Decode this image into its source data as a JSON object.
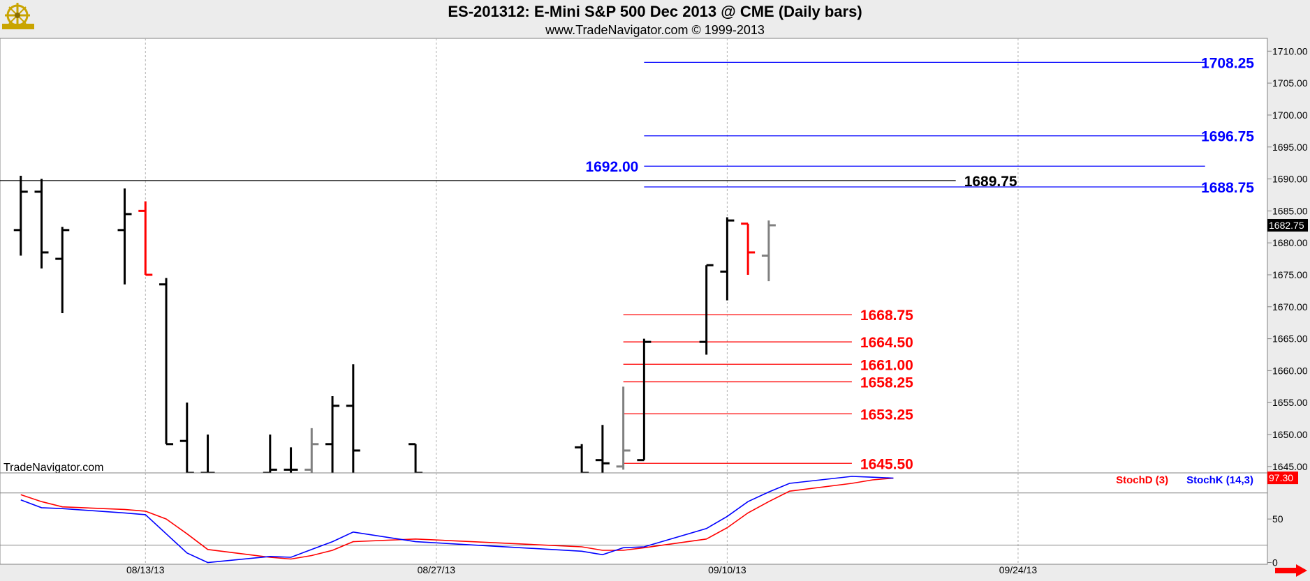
{
  "header": {
    "title": "ES-201312:  E-Mini S&P 500 Dec 2013 @ CME  (Daily bars)",
    "subtitle": "www.TradeNavigator.com © 1999-2013"
  },
  "watermark": "TradeNavigator.com",
  "logo_icon": "ship-wheel-logo-icon",
  "colors": {
    "background": "#ffffff",
    "frame": "#ececec",
    "up_bar": "#000000",
    "down_bar": "#ff0000",
    "neutral_bar": "#808080",
    "resistance": "#0000ff",
    "support": "#ff0000",
    "stoch_k": "#0000ff",
    "stoch_d": "#ff0000"
  },
  "chart_data": [
    {
      "type": "ohlc",
      "name": "price",
      "x_axis": {
        "type": "date",
        "ticks": [
          {
            "date": "2013-08-13",
            "label": "08/13/13"
          },
          {
            "date": "2013-08-27",
            "label": "08/27/13"
          },
          {
            "date": "2013-09-10",
            "label": "09/10/13"
          },
          {
            "date": "2013-09-24",
            "label": "09/24/13"
          }
        ],
        "range": [
          "2013-08-06",
          "2013-10-06"
        ]
      },
      "y_axis": {
        "range": [
          1644,
          1712
        ],
        "ticks": [
          "1710.00",
          "1705.00",
          "1700.00",
          "1695.00",
          "1690.00",
          "1685.00",
          "1680.00",
          "1675.00",
          "1670.00",
          "1665.00",
          "1660.00",
          "1655.00",
          "1650.00",
          "1645.00"
        ],
        "side": "right"
      },
      "grid": "vertical-dashed",
      "last_price": {
        "value": 1682.75,
        "label": "1682.75"
      },
      "bars": [
        {
          "date": "2013-08-07",
          "open": 1682.0,
          "high": 1690.5,
          "low": 1678.0,
          "close": 1688.0,
          "color": "up"
        },
        {
          "date": "2013-08-08",
          "open": 1688.0,
          "high": 1690.0,
          "low": 1676.0,
          "close": 1678.5,
          "color": "up"
        },
        {
          "date": "2013-08-09",
          "open": 1677.5,
          "high": 1682.5,
          "low": 1669.0,
          "close": 1682.0,
          "color": "up"
        },
        {
          "date": "2013-08-12",
          "open": 1682.0,
          "high": 1688.5,
          "low": 1673.5,
          "close": 1684.5,
          "color": "up"
        },
        {
          "date": "2013-08-13",
          "open": 1685.0,
          "high": 1686.5,
          "low": 1675.0,
          "close": 1675.0,
          "color": "down"
        },
        {
          "date": "2013-08-14",
          "open": 1673.5,
          "high": 1674.5,
          "low": 1648.5,
          "close": 1648.5,
          "color": "up"
        },
        {
          "date": "2013-08-15",
          "open": 1649.0,
          "high": 1655.0,
          "low": 1644.0,
          "close": 1644.0,
          "color": "up"
        },
        {
          "date": "2013-08-16",
          "open": 1644.0,
          "high": 1650.0,
          "low": 1644.0,
          "close": 1644.0,
          "color": "up"
        },
        {
          "date": "2013-08-19",
          "open": 1644.0,
          "high": 1650.0,
          "low": 1644.0,
          "close": 1644.5,
          "color": "up"
        },
        {
          "date": "2013-08-20",
          "open": 1644.5,
          "high": 1648.0,
          "low": 1644.0,
          "close": 1644.5,
          "color": "up"
        },
        {
          "date": "2013-08-21",
          "open": 1644.5,
          "high": 1651.0,
          "low": 1644.0,
          "close": 1648.5,
          "color": "neutral"
        },
        {
          "date": "2013-08-22",
          "open": 1648.5,
          "high": 1656.0,
          "low": 1644.0,
          "close": 1654.5,
          "color": "up"
        },
        {
          "date": "2013-08-23",
          "open": 1654.5,
          "high": 1661.0,
          "low": 1644.0,
          "close": 1647.5,
          "color": "up"
        },
        {
          "date": "2013-08-26",
          "open": 1648.5,
          "high": 1648.5,
          "low": 1644.0,
          "close": 1644.0,
          "color": "up"
        },
        {
          "date": "2013-09-03",
          "open": 1648.0,
          "high": 1648.5,
          "low": 1644.0,
          "close": 1644.0,
          "color": "up"
        },
        {
          "date": "2013-09-04",
          "open": 1646.0,
          "high": 1651.5,
          "low": 1644.0,
          "close": 1645.5,
          "color": "up"
        },
        {
          "date": "2013-09-05",
          "open": 1645.0,
          "high": 1657.5,
          "low": 1644.5,
          "close": 1647.5,
          "color": "neutral"
        },
        {
          "date": "2013-09-06",
          "open": 1646.0,
          "high": 1665.0,
          "low": 1646.0,
          "close": 1664.5,
          "color": "up"
        },
        {
          "date": "2013-09-09",
          "open": 1664.5,
          "high": 1676.5,
          "low": 1662.5,
          "close": 1676.5,
          "color": "up"
        },
        {
          "date": "2013-09-10",
          "open": 1675.5,
          "high": 1684.0,
          "low": 1671.0,
          "close": 1683.5,
          "color": "up"
        },
        {
          "date": "2013-09-11",
          "open": 1683.0,
          "high": 1683.0,
          "low": 1675.0,
          "close": 1678.5,
          "color": "down"
        },
        {
          "date": "2013-09-12",
          "open": 1678.0,
          "high": 1683.5,
          "low": 1674.0,
          "close": 1682.75,
          "color": "neutral"
        }
      ],
      "horizontal_levels": [
        {
          "value": 1708.25,
          "label": "1708.25",
          "color": "#0000ff",
          "from": "2013-09-06",
          "to": "2013-10-03",
          "label_pos": "right"
        },
        {
          "value": 1696.75,
          "label": "1696.75",
          "color": "#0000ff",
          "from": "2013-09-06",
          "to": "2013-10-03",
          "label_pos": "right"
        },
        {
          "value": 1692.0,
          "label": "1692.00",
          "color": "#0000ff",
          "from": "2013-09-06",
          "to": "2013-10-03",
          "label_pos": "left"
        },
        {
          "value": 1688.75,
          "label": "1688.75",
          "color": "#0000ff",
          "from": "2013-09-06",
          "to": "2013-10-03",
          "label_pos": "right"
        },
        {
          "value": 1689.75,
          "label": "1689.75",
          "color": "#000000",
          "from": "2013-08-06",
          "to": "2013-09-21",
          "label_pos": "end"
        },
        {
          "value": 1668.75,
          "label": "1668.75",
          "color": "#ff0000",
          "from": "2013-09-05",
          "to": "2013-09-16",
          "label_pos": "end"
        },
        {
          "value": 1664.5,
          "label": "1664.50",
          "color": "#ff0000",
          "from": "2013-09-05",
          "to": "2013-09-16",
          "label_pos": "end"
        },
        {
          "value": 1661.0,
          "label": "1661.00",
          "color": "#ff0000",
          "from": "2013-09-05",
          "to": "2013-09-16",
          "label_pos": "end"
        },
        {
          "value": 1658.25,
          "label": "1658.25",
          "color": "#ff0000",
          "from": "2013-09-05",
          "to": "2013-09-16",
          "label_pos": "end"
        },
        {
          "value": 1653.25,
          "label": "1653.25",
          "color": "#ff0000",
          "from": "2013-09-05",
          "to": "2013-09-16",
          "label_pos": "end"
        },
        {
          "value": 1645.5,
          "label": "1645.50",
          "color": "#ff0000",
          "from": "2013-09-05",
          "to": "2013-09-16",
          "label_pos": "end"
        }
      ]
    },
    {
      "type": "line",
      "name": "stochastic",
      "y_axis": {
        "range": [
          -2,
          103
        ],
        "ticks": [
          "50",
          "0"
        ],
        "side": "right"
      },
      "reference_lines": [
        80,
        20
      ],
      "last_value": {
        "value": 97.3,
        "label": "97.30"
      },
      "legend": [
        {
          "label": "StochD (3)",
          "color": "#ff0000"
        },
        {
          "label": "StochK (14,3)",
          "color": "#0000ff"
        }
      ],
      "legend_placement": "top-right",
      "series": [
        {
          "name": "StochD (3)",
          "color": "#ff0000",
          "values": [
            {
              "date": "2013-08-07",
              "y": 78
            },
            {
              "date": "2013-08-08",
              "y": 70
            },
            {
              "date": "2013-08-09",
              "y": 64
            },
            {
              "date": "2013-08-12",
              "y": 61
            },
            {
              "date": "2013-08-13",
              "y": 59
            },
            {
              "date": "2013-08-14",
              "y": 50
            },
            {
              "date": "2013-08-15",
              "y": 33
            },
            {
              "date": "2013-08-16",
              "y": 15
            },
            {
              "date": "2013-08-19",
              "y": 6
            },
            {
              "date": "2013-08-20",
              "y": 4
            },
            {
              "date": "2013-08-21",
              "y": 8
            },
            {
              "date": "2013-08-22",
              "y": 14
            },
            {
              "date": "2013-08-23",
              "y": 24
            },
            {
              "date": "2013-08-26",
              "y": 27
            },
            {
              "date": "2013-09-03",
              "y": 18
            },
            {
              "date": "2013-09-04",
              "y": 14
            },
            {
              "date": "2013-09-05",
              "y": 14
            },
            {
              "date": "2013-09-06",
              "y": 17
            },
            {
              "date": "2013-09-09",
              "y": 27
            },
            {
              "date": "2013-09-10",
              "y": 40
            },
            {
              "date": "2013-09-11",
              "y": 57
            },
            {
              "date": "2013-09-12",
              "y": 70
            },
            {
              "date": "2013-09-13",
              "y": 82
            },
            {
              "date": "2013-09-16",
              "y": 91
            },
            {
              "date": "2013-09-17",
              "y": 95
            },
            {
              "date": "2013-09-18",
              "y": 97
            }
          ]
        },
        {
          "name": "StochK (14,3)",
          "color": "#0000ff",
          "values": [
            {
              "date": "2013-08-07",
              "y": 72
            },
            {
              "date": "2013-08-08",
              "y": 63
            },
            {
              "date": "2013-08-09",
              "y": 62
            },
            {
              "date": "2013-08-12",
              "y": 57
            },
            {
              "date": "2013-08-13",
              "y": 55
            },
            {
              "date": "2013-08-14",
              "y": 33
            },
            {
              "date": "2013-08-15",
              "y": 11
            },
            {
              "date": "2013-08-16",
              "y": 0
            },
            {
              "date": "2013-08-19",
              "y": 7
            },
            {
              "date": "2013-08-20",
              "y": 6
            },
            {
              "date": "2013-08-21",
              "y": 15
            },
            {
              "date": "2013-08-22",
              "y": 24
            },
            {
              "date": "2013-08-23",
              "y": 35
            },
            {
              "date": "2013-08-26",
              "y": 24
            },
            {
              "date": "2013-09-03",
              "y": 13
            },
            {
              "date": "2013-09-04",
              "y": 9
            },
            {
              "date": "2013-09-05",
              "y": 17
            },
            {
              "date": "2013-09-06",
              "y": 18
            },
            {
              "date": "2013-09-09",
              "y": 39
            },
            {
              "date": "2013-09-10",
              "y": 53
            },
            {
              "date": "2013-09-11",
              "y": 70
            },
            {
              "date": "2013-09-12",
              "y": 81
            },
            {
              "date": "2013-09-13",
              "y": 91
            },
            {
              "date": "2013-09-16",
              "y": 99
            },
            {
              "date": "2013-09-17",
              "y": 98
            },
            {
              "date": "2013-09-18",
              "y": 97
            }
          ]
        }
      ]
    }
  ]
}
